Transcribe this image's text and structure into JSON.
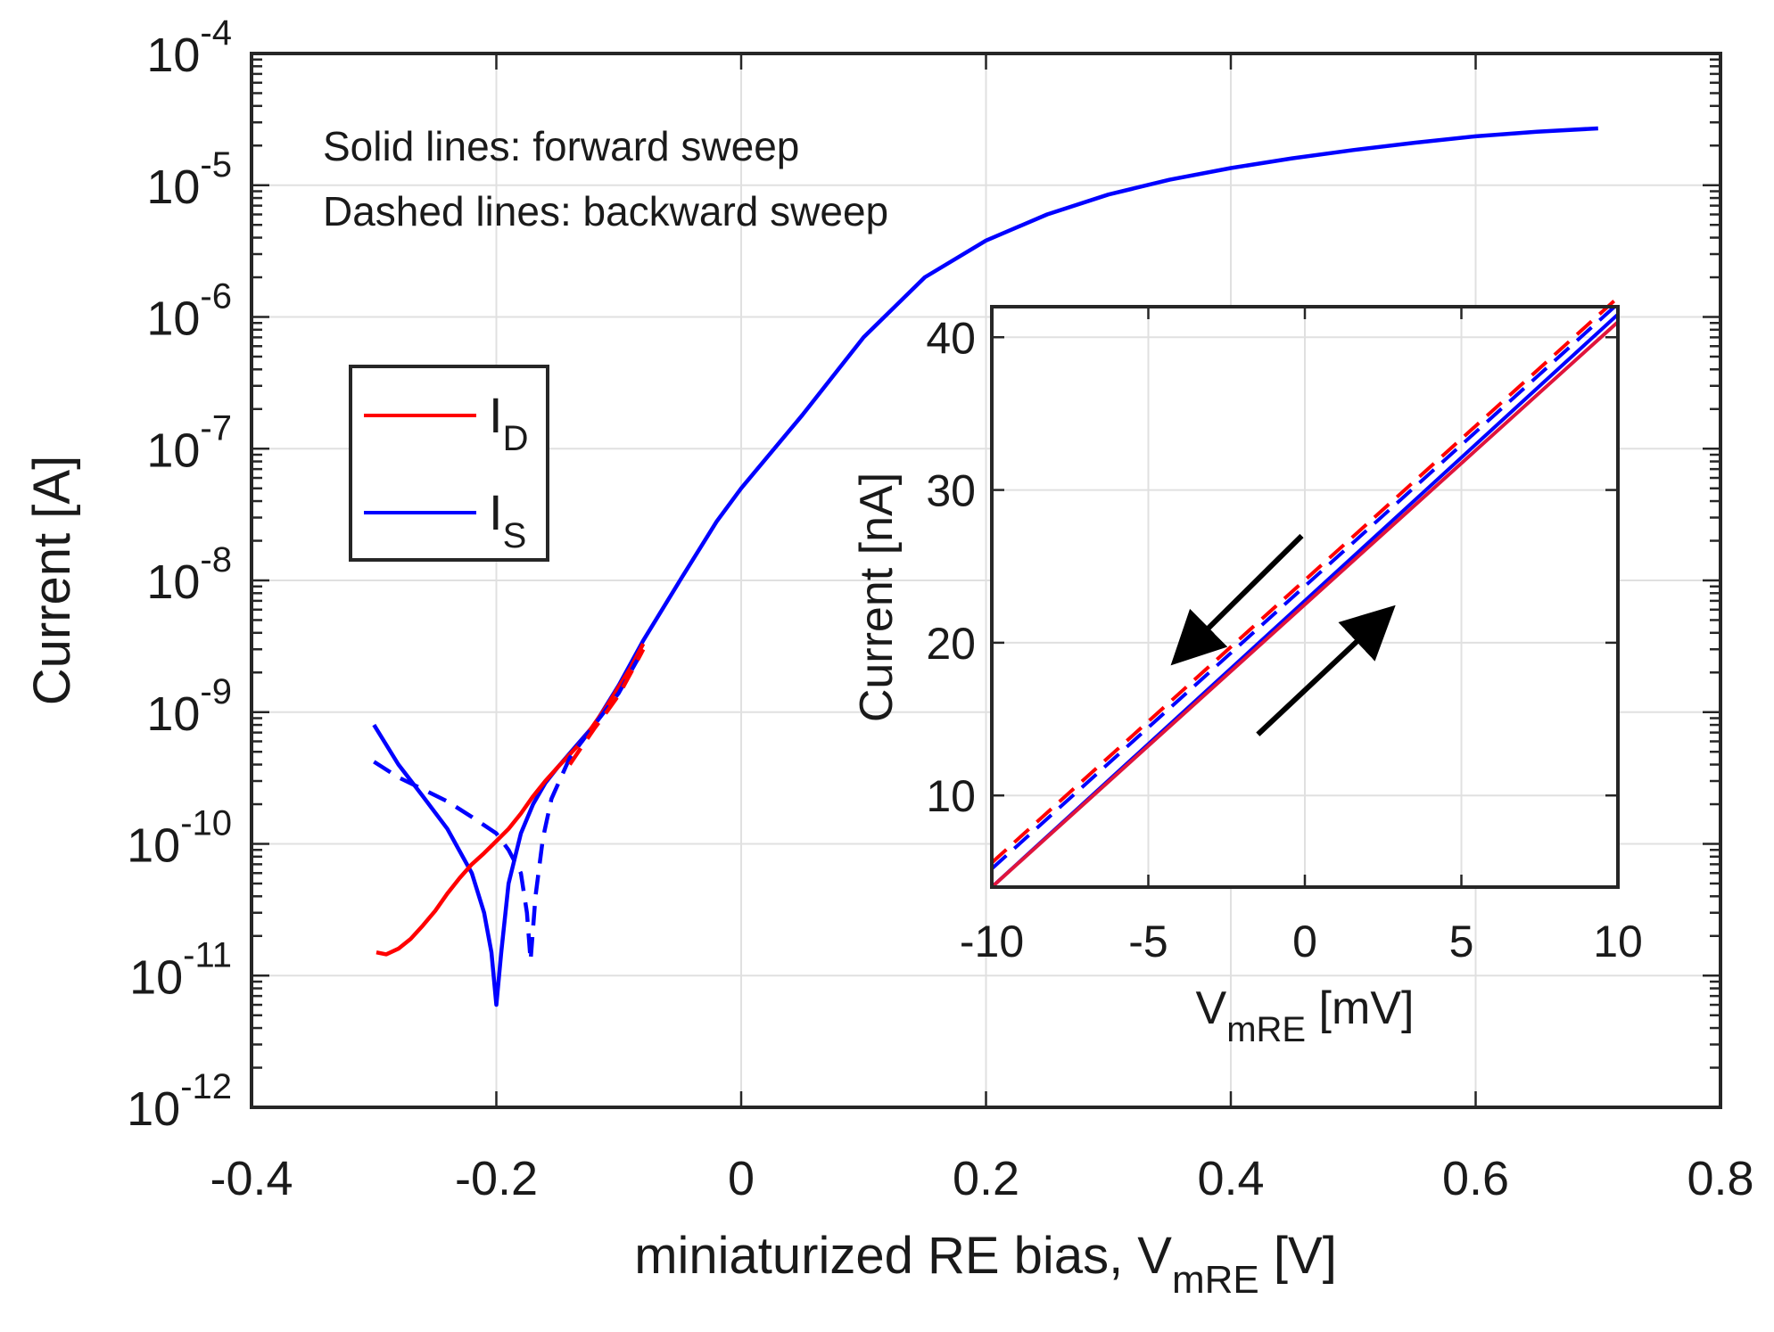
{
  "chart_data": [
    {
      "type": "line",
      "yscale": "log",
      "xlabel": "miniaturized RE bias, V",
      "xlabel_sub": "mRE",
      "xlabel_unit": " [V]",
      "ylabel": "Current [A]",
      "xlim": [
        -0.4,
        0.8
      ],
      "ylim": [
        1e-12,
        0.0001
      ],
      "x_ticks": [
        -0.4,
        -0.2,
        0,
        0.2,
        0.4,
        0.6,
        0.8
      ],
      "x_tick_labels": [
        "-0.4",
        "-0.2",
        "0",
        "0.2",
        "0.4",
        "0.6",
        "0.8"
      ],
      "y_tick_exponents": [
        -12,
        -11,
        -10,
        -9,
        -8,
        -7,
        -6,
        -5,
        -4
      ],
      "y_tick_base": "10",
      "annotations": [
        "Solid lines: forward sweep",
        "Dashed lines: backward sweep"
      ],
      "legend": [
        {
          "label": "I",
          "sub": "D",
          "color": "#ff0000"
        },
        {
          "label": "I",
          "sub": "S",
          "color": "#0000ff"
        }
      ],
      "series": [
        {
          "name": "I_S forward",
          "color": "#0000ff",
          "dash": "solid",
          "points": [
            [
              -0.3,
              8e-10
            ],
            [
              -0.28,
              4e-10
            ],
            [
              -0.26,
              2.3e-10
            ],
            [
              -0.24,
              1.3e-10
            ],
            [
              -0.22,
              6e-11
            ],
            [
              -0.21,
              3e-11
            ],
            [
              -0.204,
              1.5e-11
            ],
            [
              -0.2,
              6e-12
            ],
            [
              -0.196,
              1.5e-11
            ],
            [
              -0.19,
              5e-11
            ],
            [
              -0.18,
              1.2e-10
            ],
            [
              -0.17,
              2e-10
            ],
            [
              -0.16,
              2.9e-10
            ],
            [
              -0.15,
              3.8e-10
            ],
            [
              -0.12,
              8e-10
            ],
            [
              -0.1,
              1.6e-09
            ],
            [
              -0.08,
              3.5e-09
            ],
            [
              -0.05,
              1e-08
            ],
            [
              -0.02,
              2.8e-08
            ],
            [
              0,
              5e-08
            ],
            [
              0.05,
              1.8e-07
            ],
            [
              0.1,
              7e-07
            ],
            [
              0.15,
              2e-06
            ],
            [
              0.2,
              3.8e-06
            ],
            [
              0.25,
              6e-06
            ],
            [
              0.3,
              8.5e-06
            ],
            [
              0.35,
              1.1e-05
            ],
            [
              0.4,
              1.35e-05
            ],
            [
              0.45,
              1.6e-05
            ],
            [
              0.5,
              1.85e-05
            ],
            [
              0.55,
              2.1e-05
            ],
            [
              0.6,
              2.35e-05
            ],
            [
              0.65,
              2.55e-05
            ],
            [
              0.7,
              2.7e-05
            ]
          ]
        },
        {
          "name": "I_D forward",
          "color": "#ff0000",
          "dash": "solid",
          "points": [
            [
              -0.298,
              1.5e-11
            ],
            [
              -0.29,
              1.45e-11
            ],
            [
              -0.28,
              1.6e-11
            ],
            [
              -0.27,
              1.9e-11
            ],
            [
              -0.26,
              2.4e-11
            ],
            [
              -0.25,
              3.1e-11
            ],
            [
              -0.24,
              4.2e-11
            ],
            [
              -0.23,
              5.5e-11
            ],
            [
              -0.22,
              7e-11
            ],
            [
              -0.21,
              8.5e-11
            ],
            [
              -0.2,
              1.05e-10
            ],
            [
              -0.19,
              1.3e-10
            ],
            [
              -0.18,
              1.7e-10
            ],
            [
              -0.17,
              2.3e-10
            ],
            [
              -0.16,
              3e-10
            ],
            [
              -0.15,
              3.8e-10
            ],
            [
              -0.13,
              6e-10
            ],
            [
              -0.11,
              1.1e-09
            ],
            [
              -0.09,
              2.2e-09
            ],
            [
              -0.08,
              3.3e-09
            ]
          ]
        },
        {
          "name": "I_S backward",
          "color": "#0000ff",
          "dash": "dashed",
          "points": [
            [
              -0.3,
              4.2e-10
            ],
            [
              -0.28,
              3.2e-10
            ],
            [
              -0.26,
              2.6e-10
            ],
            [
              -0.24,
              2.1e-10
            ],
            [
              -0.22,
              1.6e-10
            ],
            [
              -0.2,
              1.2e-10
            ],
            [
              -0.19,
              9e-11
            ],
            [
              -0.18,
              6e-11
            ],
            [
              -0.175,
              3e-11
            ],
            [
              -0.172,
              1.3e-11
            ],
            [
              -0.168,
              4e-11
            ],
            [
              -0.162,
              1.1e-10
            ],
            [
              -0.155,
              2.2e-10
            ],
            [
              -0.14,
              4.5e-10
            ],
            [
              -0.12,
              8e-10
            ],
            [
              -0.1,
              1.4e-09
            ],
            [
              -0.08,
              3e-09
            ]
          ]
        },
        {
          "name": "I_D backward",
          "color": "#ff0000",
          "dash": "dashed",
          "points": [
            [
              -0.14,
              4e-10
            ],
            [
              -0.13,
              5.5e-10
            ],
            [
              -0.12,
              7.5e-10
            ],
            [
              -0.11,
              1e-09
            ],
            [
              -0.1,
              1.35e-09
            ],
            [
              -0.09,
              2e-09
            ],
            [
              -0.08,
              3e-09
            ]
          ]
        }
      ]
    },
    {
      "type": "line",
      "xlabel": "V",
      "xlabel_sub": "mRE",
      "xlabel_unit": " [mV]",
      "ylabel": "Current [nA]",
      "xlim": [
        -10,
        10
      ],
      "ylim": [
        4,
        42
      ],
      "x_ticks": [
        -10,
        -5,
        0,
        5,
        10
      ],
      "x_tick_labels": [
        "-10",
        "-5",
        "0",
        "5",
        "10"
      ],
      "y_ticks": [
        10,
        20,
        30,
        40
      ],
      "y_tick_labels": [
        "10",
        "20",
        "30",
        "40"
      ],
      "series": [
        {
          "name": "I_S forward",
          "color": "#0000ff",
          "dash": "solid",
          "points": [
            [
              -10,
              4
            ],
            [
              10,
              41.5
            ]
          ]
        },
        {
          "name": "I_D forward",
          "color": "#e0153c",
          "dash": "solid",
          "points": [
            [
              -10,
              4
            ],
            [
              10,
              41
            ]
          ]
        },
        {
          "name": "I_S backward",
          "color": "#0000ff",
          "dash": "dashed",
          "points": [
            [
              -10,
              5.2
            ],
            [
              10,
              42.2
            ]
          ]
        },
        {
          "name": "I_D backward",
          "color": "#ff0000",
          "dash": "dashed",
          "points": [
            [
              -10,
              5.6
            ],
            [
              10,
              42.6
            ]
          ]
        }
      ],
      "arrows": [
        {
          "name": "backward-arrow",
          "from": [
            -0.1,
            27
          ],
          "to": [
            -3.8,
            19.5
          ]
        },
        {
          "name": "forward-arrow",
          "from": [
            -1.5,
            14
          ],
          "to": [
            2.4,
            21.5
          ]
        }
      ]
    }
  ]
}
